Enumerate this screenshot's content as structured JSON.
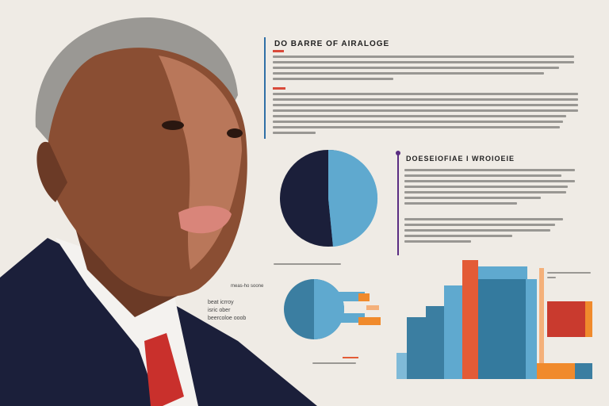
{
  "section1": {
    "heading": "DO BARRE OF AIRALOGE",
    "accent_color": "#2f6fa6"
  },
  "section2": {
    "heading": "DOESEIOFIAE I WROIOEIE",
    "accent_color": "#5a2d82"
  },
  "labels": {
    "pie_small": "meas-ho soone",
    "left_1": "beat icrroy",
    "left_2": "isric ober",
    "left_3": "beercoloe ooob"
  },
  "colors": {
    "navy": "#1b1f3a",
    "steel_blue": "#3b7ea1",
    "light_blue": "#5fa9cf",
    "orange_red": "#e35b36",
    "orange": "#f08a2c",
    "red": "#c93a2e",
    "background": "#efebe5"
  },
  "illustration": {
    "subject": "portrait",
    "tie_color": "#c9302c",
    "suit_color": "#1b1f3a"
  }
}
